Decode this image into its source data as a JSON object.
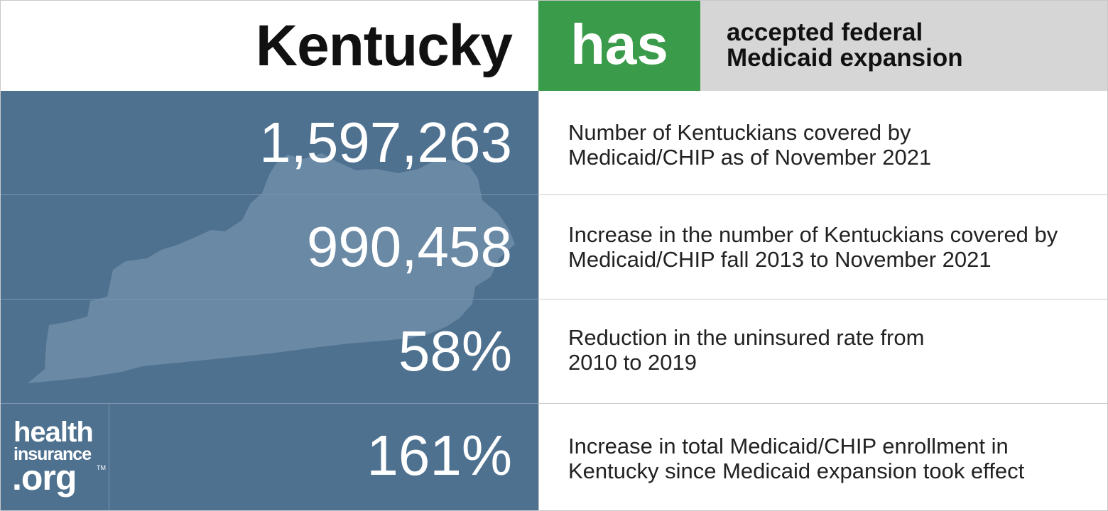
{
  "header": {
    "state": "Kentucky",
    "status": "has",
    "description_line1": "accepted federal",
    "description_line2": "Medicaid expansion"
  },
  "stats": [
    {
      "value": "1,597,263",
      "label_line1": "Number of Kentuckians covered by",
      "label_line2": "Medicaid/CHIP as of November 2021"
    },
    {
      "value": "990,458",
      "label_line1": "Increase in the number of Kentuckians covered by",
      "label_line2": "Medicaid/CHIP fall 2013 to November 2021"
    },
    {
      "value": "58%",
      "label_line1": "Reduction in the uninsured rate from",
      "label_line2": "2010 to 2019"
    },
    {
      "value": "161%",
      "label_line1": "Increase in total Medicaid/CHIP enrollment in",
      "label_line2": "Kentucky since Medicaid expansion took effect"
    }
  ],
  "logo": {
    "line1": "health",
    "line2": "insurance",
    "line3": ".org",
    "trademark": "TM"
  },
  "colors": {
    "status_green": "#3a9b4a",
    "panel_blue": "#4f7190",
    "state_shape": "#6a89a5",
    "status_gray": "#d6d6d6"
  },
  "icons": {
    "state_map": "kentucky-state-silhouette",
    "logo": "healthinsurance-org-logo"
  }
}
